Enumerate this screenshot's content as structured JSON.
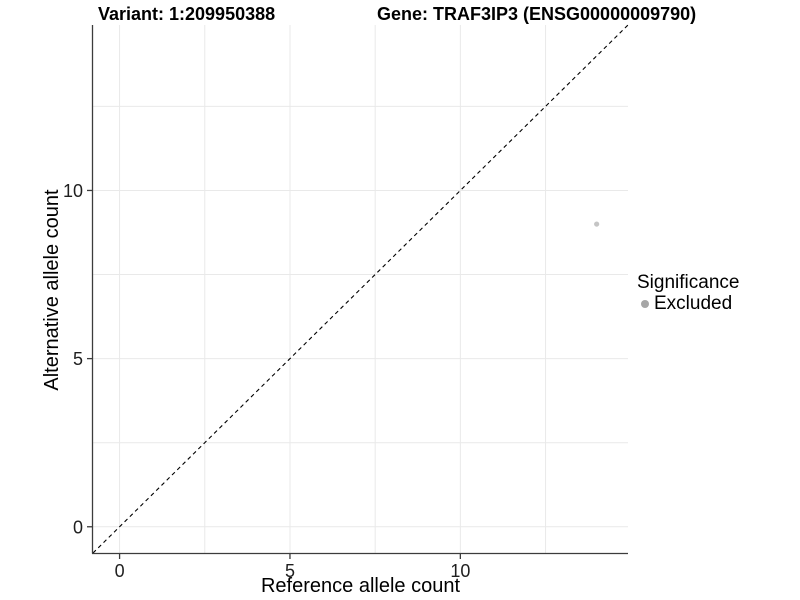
{
  "header": {
    "variant_title": "Variant: 1:209950388",
    "gene_title": "Gene: TRAF3IP3 (ENSG00000009790)"
  },
  "colors": {
    "background": "#FFFFFF",
    "grid": "#E9E9E9",
    "axis_line": "#3C3C3C",
    "tick_label": "#1F1F1F",
    "title": "#000000",
    "dashed_line": "#000000",
    "point": "#C5C5C5",
    "legend_key": "#A6A6A6"
  },
  "chart_data": {
    "type": "scatter",
    "xlabel": "Reference allele count",
    "ylabel": "Alternative allele count",
    "xlim": [
      -0.78,
      14.92
    ],
    "ylim": [
      -0.78,
      14.92
    ],
    "xticks": [
      0,
      5,
      10
    ],
    "yticks": [
      0,
      5,
      10
    ],
    "xminor": [
      2.5,
      7.5,
      12.5
    ],
    "yminor": [
      2.5,
      7.5,
      12.5
    ],
    "grid": "major+minor, light gray on white",
    "reference_line": {
      "type": "identity y=x",
      "style": "dashed",
      "color": "#000000"
    },
    "series": [
      {
        "name": "Excluded",
        "point_color": "#C5C5C5",
        "points": [
          {
            "x": 14,
            "y": 9
          }
        ]
      }
    ],
    "legend": {
      "title": "Significance",
      "position": "right",
      "entries": [
        {
          "label": "Excluded",
          "color": "#A6A6A6"
        }
      ]
    }
  }
}
